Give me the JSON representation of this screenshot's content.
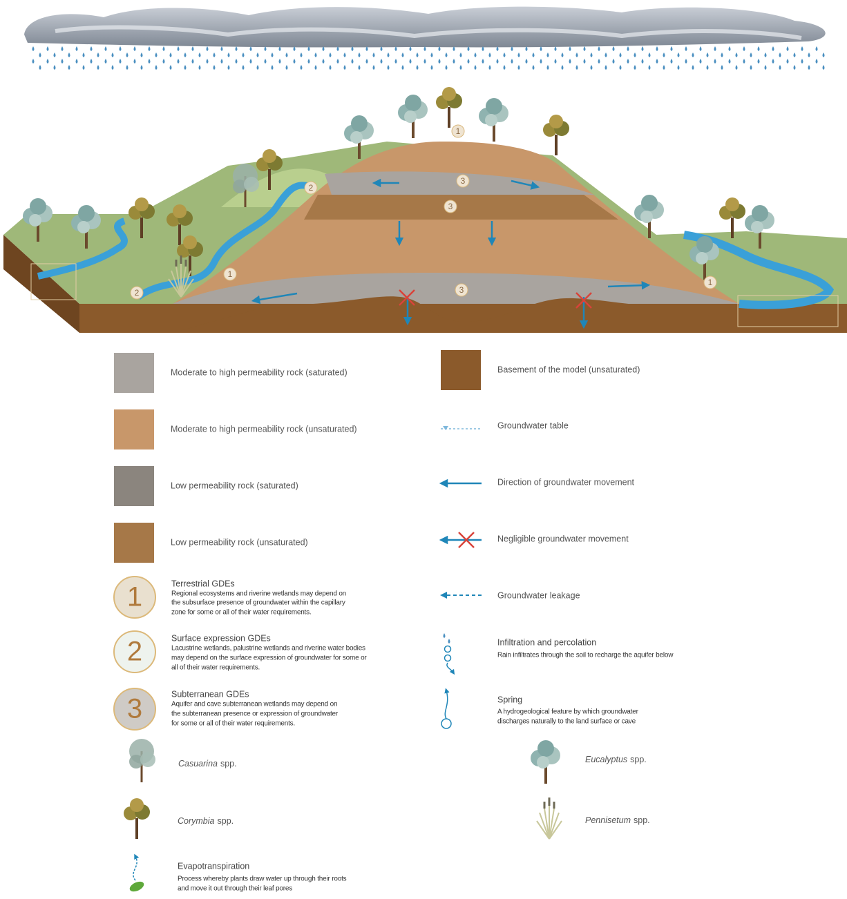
{
  "diagram": {
    "markers": [
      "1",
      "3",
      "3",
      "2",
      "1",
      "2",
      "3",
      "1"
    ]
  },
  "legend": {
    "left": [
      {
        "label": "Moderate to high permeability rock (saturated)"
      },
      {
        "label": "Moderate to high permeability rock (unsaturated)"
      },
      {
        "label": "Low permeability rock (saturated)"
      },
      {
        "label": "Low permeability rock (unsaturated)"
      },
      {
        "icon": "1",
        "title": "Terrestrial GDEs",
        "lines": [
          "Regional ecosystems and riverine wetlands may depend on",
          "the subsurface presence of groundwater within the capillary",
          "zone for some or all of their water requirements."
        ]
      },
      {
        "icon": "2",
        "title": "Surface expression GDEs",
        "lines": [
          "Lacustrine wetlands, palustrine wetlands and riverine water bodies",
          "may depend on the surface expression of groundwater for some or",
          "all of their water requirements."
        ]
      },
      {
        "icon": "3",
        "title": "Subterranean GDEs",
        "lines": [
          "Aquifer and cave subterranean wetlands may depend on",
          "the subterranean presence or expression of groundwater",
          "for some or all of their water requirements."
        ]
      },
      {
        "genus": "Casuarina",
        "suffix": "spp."
      },
      {
        "genus": "Corymbia",
        "suffix": "spp."
      },
      {
        "title": "Evapotranspiration",
        "lines": [
          "Process whereby plants draw water up through their roots",
          "and move it out through their leaf pores"
        ]
      }
    ],
    "right": [
      {
        "label": "Basement of the model (unsaturated)"
      },
      {
        "label": "Groundwater table"
      },
      {
        "label": "Direction of groundwater movement"
      },
      {
        "label": "Negligible groundwater movement"
      },
      {
        "label": "Groundwater leakage"
      },
      {
        "title": "Infiltration and percolation",
        "lines": [
          "Rain infiltrates through the soil to recharge the aquifer below"
        ]
      },
      {
        "title": "Spring",
        "lines": [
          "A hydrogeological feature by which groundwater",
          "discharges naturally to the land surface or cave"
        ]
      },
      {
        "genus": "Eucalyptus",
        "suffix": "spp."
      },
      {
        "genus": "Pennisetum",
        "suffix": "spp."
      }
    ]
  }
}
